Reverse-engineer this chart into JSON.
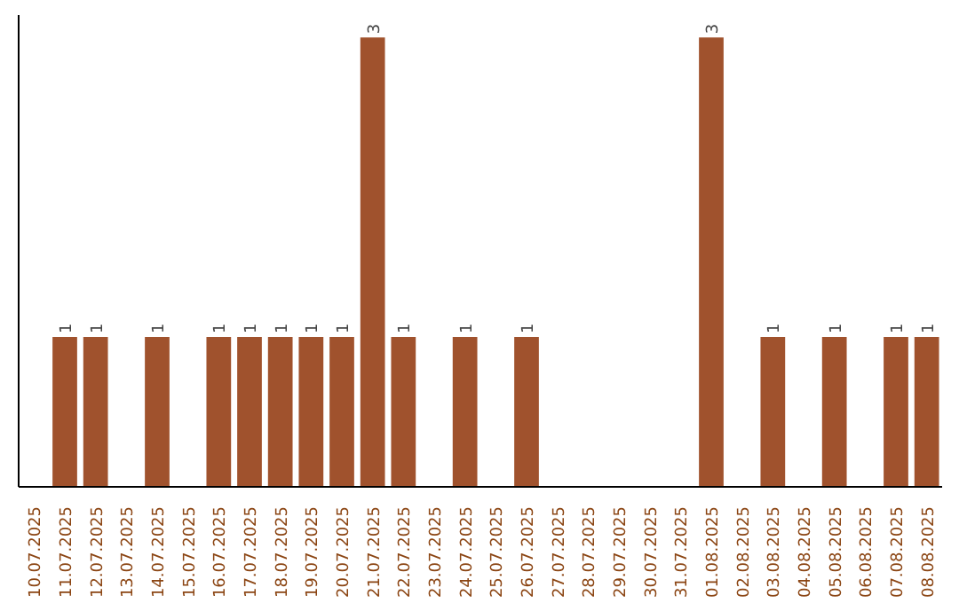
{
  "chart_data": {
    "type": "bar",
    "categories": [
      "10.07.2025",
      "11.07.2025",
      "12.07.2025",
      "13.07.2025",
      "14.07.2025",
      "15.07.2025",
      "16.07.2025",
      "17.07.2025",
      "18.07.2025",
      "19.07.2025",
      "20.07.2025",
      "21.07.2025",
      "22.07.2025",
      "23.07.2025",
      "24.07.2025",
      "25.07.2025",
      "26.07.2025",
      "27.07.2025",
      "28.07.2025",
      "29.07.2025",
      "30.07.2025",
      "31.07.2025",
      "01.08.2025",
      "02.08.2025",
      "03.08.2025",
      "04.08.2025",
      "05.08.2025",
      "06.08.2025",
      "07.08.2025",
      "08.08.2025"
    ],
    "values": [
      0,
      1,
      1,
      0,
      1,
      0,
      1,
      1,
      1,
      1,
      1,
      3,
      1,
      0,
      1,
      0,
      1,
      0,
      0,
      0,
      0,
      0,
      3,
      0,
      1,
      0,
      1,
      0,
      1,
      1
    ],
    "value_labels": [
      null,
      "1",
      "1",
      null,
      "1",
      null,
      "1",
      "1",
      "1",
      "1",
      "1",
      "3",
      "1",
      null,
      "1",
      null,
      "1",
      null,
      null,
      null,
      null,
      null,
      "3",
      null,
      "1",
      null,
      "1",
      null,
      "1",
      "1"
    ],
    "color": "#a0522d",
    "ylim": [
      0,
      3.15
    ],
    "tick_labels": "x",
    "grid": false
  }
}
